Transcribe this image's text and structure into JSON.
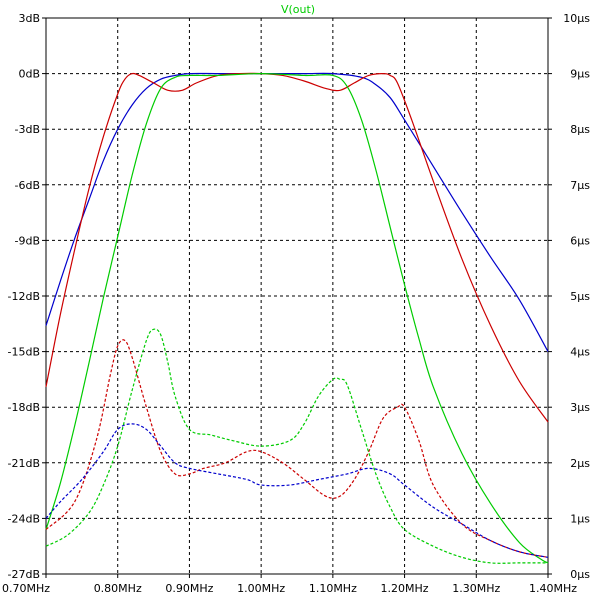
{
  "chart_data": {
    "type": "line",
    "title": "V(out)",
    "title_color": "#00cc00",
    "grid": true,
    "grid_style": "dashed",
    "x_range": [
      0.7,
      1.4
    ],
    "x_unit": "MHz",
    "x_ticks": [
      "0.70MHz",
      "0.80MHz",
      "0.90MHz",
      "1.00MHz",
      "1.10MHz",
      "1.20MHz",
      "1.30MHz",
      "1.40MHz"
    ],
    "x_tick_values": [
      0.7,
      0.8,
      0.9,
      1.0,
      1.1,
      1.2,
      1.3,
      1.4
    ],
    "y_left_range": [
      -27,
      3
    ],
    "y_left_ticks": [
      "3dB",
      "0dB",
      "-3dB",
      "-6dB",
      "-9dB",
      "-12dB",
      "-15dB",
      "-18dB",
      "-21dB",
      "-24dB",
      "-27dB"
    ],
    "y_left_tick_values": [
      3,
      0,
      -3,
      -6,
      -9,
      -12,
      -15,
      -18,
      -21,
      -24,
      -27
    ],
    "y_right_range": [
      0,
      10
    ],
    "y_right_ticks": [
      "10µs",
      "9µs",
      "8µs",
      "7µs",
      "6µs",
      "5µs",
      "4µs",
      "3µs",
      "2µs",
      "1µs",
      "0µs"
    ],
    "y_right_tick_values": [
      10,
      9,
      8,
      7,
      6,
      5,
      4,
      3,
      2,
      1,
      0
    ],
    "series": [
      {
        "color": "#0000cc",
        "style": "solid",
        "axis": "left",
        "x": [
          0.7,
          0.72,
          0.74,
          0.76,
          0.78,
          0.8,
          0.82,
          0.84,
          0.86,
          0.88,
          0.9,
          0.94,
          1.0,
          1.06,
          1.1,
          1.14,
          1.16,
          1.18,
          1.2,
          1.24,
          1.28,
          1.32,
          1.36,
          1.4
        ],
        "y": [
          -13.6,
          -11.2,
          -8.9,
          -6.8,
          -4.7,
          -3.0,
          -1.7,
          -0.8,
          -0.3,
          -0.1,
          0.0,
          0.0,
          0.0,
          0.0,
          0.0,
          -0.2,
          -0.6,
          -1.3,
          -2.5,
          -5.0,
          -7.5,
          -9.9,
          -12.2,
          -15.0
        ]
      },
      {
        "color": "#cc0000",
        "style": "solid",
        "axis": "left",
        "x": [
          0.7,
          0.72,
          0.74,
          0.76,
          0.78,
          0.8,
          0.81,
          0.82,
          0.83,
          0.85,
          0.87,
          0.89,
          0.91,
          0.94,
          0.97,
          1.0,
          1.03,
          1.06,
          1.09,
          1.11,
          1.13,
          1.15,
          1.17,
          1.18,
          1.19,
          1.21,
          1.24,
          1.28,
          1.32,
          1.36,
          1.4
        ],
        "y": [
          -16.9,
          -13.0,
          -9.5,
          -6.2,
          -3.4,
          -1.1,
          -0.3,
          0.0,
          -0.1,
          -0.5,
          -0.9,
          -0.9,
          -0.5,
          -0.1,
          0.0,
          0.0,
          -0.1,
          -0.4,
          -0.8,
          -0.9,
          -0.5,
          -0.1,
          0.0,
          -0.1,
          -0.5,
          -2.5,
          -5.8,
          -10.0,
          -13.6,
          -16.6,
          -18.8
        ]
      },
      {
        "color": "#00cc00",
        "style": "solid",
        "axis": "left",
        "x": [
          0.7,
          0.72,
          0.74,
          0.76,
          0.78,
          0.8,
          0.82,
          0.84,
          0.86,
          0.88,
          0.9,
          0.94,
          1.0,
          1.06,
          1.1,
          1.12,
          1.14,
          1.16,
          1.18,
          1.2,
          1.22,
          1.24,
          1.28,
          1.32,
          1.36,
          1.39,
          1.4
        ],
        "y": [
          -24.6,
          -22.1,
          -19.0,
          -15.6,
          -12.1,
          -8.8,
          -5.5,
          -2.7,
          -0.8,
          -0.2,
          -0.1,
          -0.1,
          0.0,
          -0.1,
          -0.1,
          -0.7,
          -2.5,
          -5.2,
          -8.3,
          -11.4,
          -14.3,
          -16.9,
          -20.5,
          -23.2,
          -25.3,
          -26.2,
          -26.4
        ]
      },
      {
        "color": "#cc0000",
        "style": "dashed",
        "axis": "right",
        "x": [
          0.7,
          0.74,
          0.77,
          0.79,
          0.8,
          0.81,
          0.82,
          0.84,
          0.86,
          0.88,
          0.9,
          0.92,
          0.95,
          0.98,
          1.0,
          1.03,
          1.06,
          1.09,
          1.11,
          1.13,
          1.15,
          1.17,
          1.19,
          1.2,
          1.22,
          1.24,
          1.28,
          1.32,
          1.36,
          1.4
        ],
        "y": [
          0.8,
          1.3,
          2.4,
          3.6,
          4.1,
          4.2,
          3.9,
          3.0,
          2.2,
          1.8,
          1.8,
          1.9,
          2.0,
          2.2,
          2.2,
          2.0,
          1.7,
          1.4,
          1.4,
          1.7,
          2.2,
          2.8,
          3.0,
          3.0,
          2.4,
          1.6,
          0.9,
          0.6,
          0.4,
          0.3
        ]
      },
      {
        "color": "#0000cc",
        "style": "dashed",
        "axis": "right",
        "x": [
          0.7,
          0.72,
          0.75,
          0.78,
          0.8,
          0.82,
          0.84,
          0.86,
          0.88,
          0.9,
          0.94,
          0.98,
          1.0,
          1.04,
          1.08,
          1.12,
          1.15,
          1.18,
          1.2,
          1.24,
          1.28,
          1.32,
          1.36,
          1.4
        ],
        "y": [
          1.0,
          1.3,
          1.7,
          2.2,
          2.6,
          2.7,
          2.6,
          2.3,
          2.0,
          1.9,
          1.8,
          1.7,
          1.6,
          1.6,
          1.7,
          1.8,
          1.9,
          1.8,
          1.6,
          1.2,
          0.9,
          0.6,
          0.4,
          0.3
        ]
      },
      {
        "color": "#00cc00",
        "style": "dashed",
        "axis": "right",
        "x": [
          0.7,
          0.73,
          0.76,
          0.78,
          0.8,
          0.82,
          0.84,
          0.85,
          0.86,
          0.87,
          0.88,
          0.9,
          0.93,
          0.96,
          1.0,
          1.04,
          1.06,
          1.08,
          1.1,
          1.11,
          1.12,
          1.14,
          1.16,
          1.18,
          1.2,
          1.24,
          1.28,
          1.32,
          1.36,
          1.4
        ],
        "y": [
          0.5,
          0.7,
          1.1,
          1.6,
          2.3,
          3.3,
          4.2,
          4.4,
          4.3,
          3.8,
          3.2,
          2.6,
          2.5,
          2.4,
          2.3,
          2.4,
          2.7,
          3.2,
          3.5,
          3.5,
          3.4,
          2.6,
          1.8,
          1.2,
          0.8,
          0.5,
          0.3,
          0.2,
          0.2,
          0.2
        ]
      }
    ]
  }
}
